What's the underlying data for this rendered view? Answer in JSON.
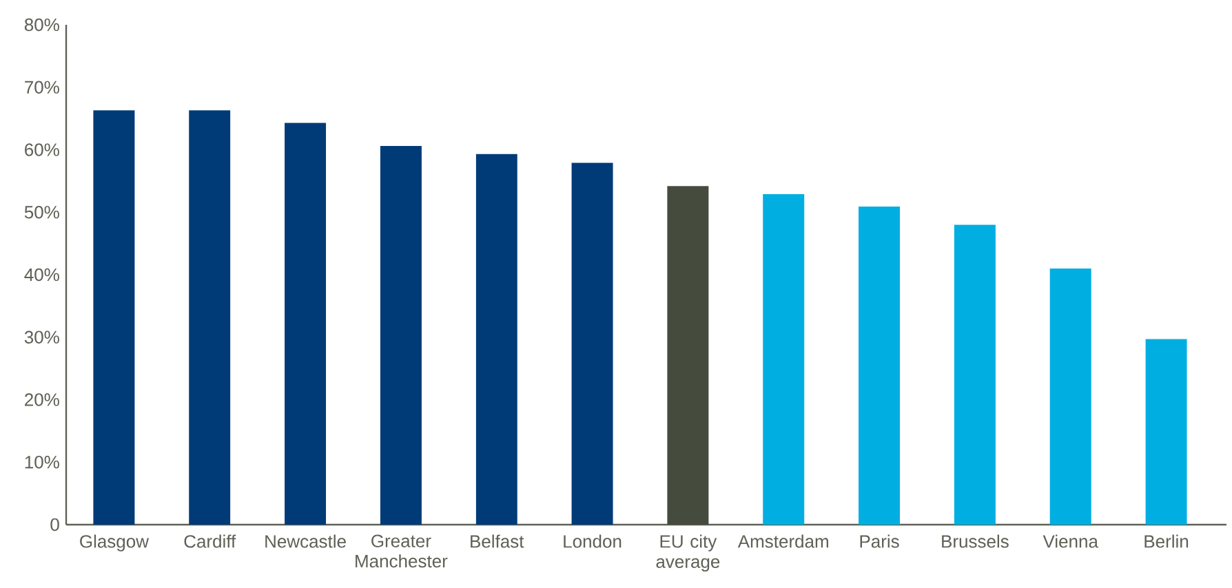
{
  "chart_data": {
    "type": "bar",
    "categories": [
      "Glasgow",
      "Cardiff",
      "Newcastle",
      "Greater Manchester",
      "Belfast",
      "London",
      "EU city average",
      "Amsterdam",
      "Paris",
      "Brussels",
      "Vienna",
      "Berlin"
    ],
    "values": [
      66.3,
      66.3,
      64.3,
      60.6,
      59.3,
      57.9,
      54.2,
      52.9,
      50.9,
      48.0,
      41.0,
      29.7
    ],
    "colors": [
      "#003b78",
      "#003b78",
      "#003b78",
      "#003b78",
      "#003b78",
      "#003b78",
      "#454c3e",
      "#00aee2",
      "#00aee2",
      "#00aee2",
      "#00aee2",
      "#00aee2"
    ],
    "ylim": [
      0,
      80
    ],
    "yticks": [
      {
        "value": 0,
        "label": "0"
      },
      {
        "value": 10,
        "label": "10%"
      },
      {
        "value": 20,
        "label": "20%"
      },
      {
        "value": 30,
        "label": "30%"
      },
      {
        "value": 40,
        "label": "40%"
      },
      {
        "value": 50,
        "label": "50%"
      },
      {
        "value": 60,
        "label": "60%"
      },
      {
        "value": 70,
        "label": "70%"
      },
      {
        "value": 80,
        "label": "80%"
      }
    ],
    "grid": false
  }
}
